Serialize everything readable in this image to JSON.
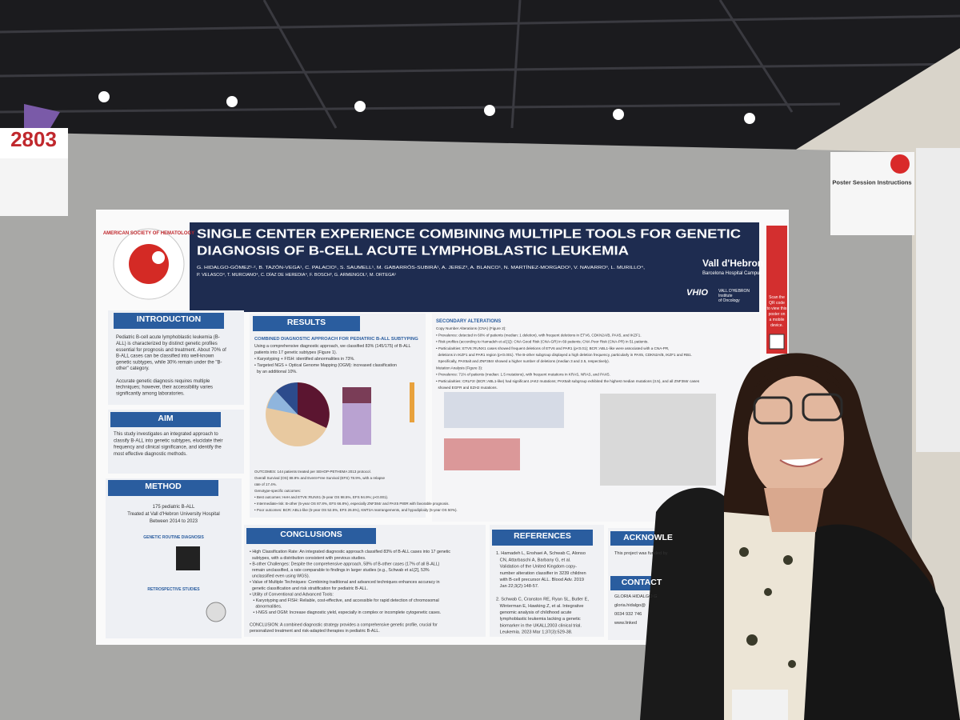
{
  "sign": {
    "number": "2803"
  },
  "poster": {
    "logo": "AMERICAN SOCIETY OF HEMATOLOGY",
    "title": [
      "SINGLE CENTER EXPERIENCE COMBINING MULTIPLE TOOLS FOR GENETIC",
      "DIAGNOSIS OF B-CELL ACUTE LYMPHOBLASTIC LEUKEMIA"
    ],
    "authors": [
      "G. HIDALGO-GÓMEZ¹·², B. TAZÓN-VEGA¹, C. PALACIO¹, S. SAUMELL¹, M. GABARRÓS-SUBIRÀ¹, A. JEREZ³, A. BLANCO¹, N. MARTÍNEZ-MORGADO¹, V. NAVARRO³, L. MURILLO⁴,",
      "P. VELASCO⁴, T. MURCIANO⁴, C. DÍAZ DE HEREDIA⁴, F. BOSCH³, G. ARMENGOL², M. ORTEGA¹"
    ],
    "institution": {
      "name": "Vall d'Hebron",
      "campus": "Barcelona Hospital Campus",
      "vhio": "VHIO",
      "vhio_name": [
        "VALL D'HEBRON",
        "Institute",
        "of Oncology"
      ]
    },
    "qr_note": [
      "Scan the",
      "QR code",
      "to view this",
      "poster on",
      "a mobile",
      "device."
    ],
    "introduction": {
      "heading": "INTRODUCTION",
      "lines": [
        "Pediatric B-cell acute lymphoblastic leukemia (B-",
        "ALL) is characterized by distinct genetic profiles",
        "essential for prognosis and treatment. About 70% of",
        "B-ALL cases can be classified into well-known",
        "genetic subtypes, while 30% remain under the \"B-",
        "other\" category.",
        "",
        "Accurate genetic diagnosis requires multiple",
        "techniques; however, their accessibility varies",
        "significantly among laboratories."
      ]
    },
    "aim": {
      "heading": "AIM",
      "lines": [
        "This study investigates an integrated approach to",
        "classify B-ALL into genetic subtypes, elucidate their",
        "frequency and clinical significance, and identify the",
        "most effective diagnostic methods."
      ]
    },
    "method": {
      "heading": "METHOD",
      "lines": [
        "175 pediatric B-ALL",
        "Treated at Vall d'Hebron University Hospital",
        "Between 2014 to 2023"
      ],
      "routine": "GENETIC ROUTINE DIAGNOSIS",
      "retro": "RETROSPECTIVE STUDIES"
    },
    "results": {
      "heading": "RESULTS",
      "subheading": "COMBINED DIAGNOSTIC APPROACH FOR PEDIATRIC B-ALL SUBTYPING",
      "lines": [
        "Using a comprehensive diagnostic approach, we classified 83% (145/175) of B-ALL",
        "patients into 17 genetic subtypes (Figure 1).",
        "• Karyotyping + FISH: identified abnormalities in 73%.",
        "• Targeted NGS + Optical Genome Mapping (OGM): increased classification",
        "  by an additional 10%."
      ],
      "outcomes": [
        "OUTCOMES: 144 patients treated per SEHOP-PETHEMA 2013 protocol.",
        "Overall Survival (OS) 88.9% and Event-Free Survival (EFS) 78.9%, with a relapse",
        "rate of 17.4%.",
        "Genotype-specific outcomes:",
        "• Best outcomes: HeH and ETV6::RUNX1 (5-year OS 98.5%, EFS 94.9%; p<0.001).",
        "• Intermediate-risk: B-other (5-year OS 87.8%, EFS 66.8%), especially ZNF384r and PAX5 P80R with favorable prognosis.",
        "• Poor outcomes: BCR::ABL1-like (5-year OS 52.5%, EFS 26.5%), KMT2A rearrangements, and hypodiploidy (5-year OS 50%)."
      ]
    },
    "secondary": {
      "heading": "SECONDARY ALTERATIONS",
      "lines": [
        "Copy Number Alterations (CNA) (Figure 2):",
        "• Prevalence: detected in 60% of patients (median: 1 deletion), with frequent deletions in ETV6, CDKN2A/B, PAX5, and IKZF1.",
        "• Risk profiles (according to Hamadeh et al.[1]): CNA Good Risk (CNA-GR) in 69 patients; CNA Poor Risk (CNA-PR) in 51 patients.",
        "• Particularities: ETV6::RUNX1 cases showed frequent deletions of ETV6 and PAR1 (p<0.01); BCR::ABL1-like were associated with a CNA-PR,",
        "  deletions in IKZF1 and PAR1 region (p<0.001). The B-other subgroup displayed a high deletion frequency, particularly in PAX5, CDKN2A/B, IKZF1 and RB1.",
        "  Specifically, PAX5alt and ZNF384r showed a higher number of deletions (median 3 and 2.5, respectively).",
        "Mutation Analysis (Figure 3):",
        "• Prevalence: 71% of patients (median: 1.5 mutations), with frequent mutations in KRAS, NRAS, and PAX5.",
        "• Particularities: CRLF2r (BCR::ABL1-like) had significant JAK2 mutations; PAX5alt subgroup exhibited the highest median mutations (3.5), and all ZNF384r cases",
        "  showed EGFR and EZH2 mutations."
      ]
    },
    "conclusions": {
      "heading": "CONCLUSIONS",
      "lines": [
        "• High Classification Rate: An integrated diagnostic approach classified 83% of B-ALL cases into 17 genetic",
        "  subtypes, with a distribution consistent with previous studies.",
        "• B-other Challenges: Despite the comprehensive approach, 58% of B-other cases (17% of all B-ALL)",
        "  remain unclassified, a rate comparable to findings in larger studies (e.g., Schwab et al.[2], 53%",
        "  unclassified even using WGS).",
        "• Value of Multiple Techniques: Combining traditional and advanced techniques enhances accuracy in",
        "  genetic classification and risk stratification for pediatric B-ALL.",
        "• Utility of Conventional and Advanced Tools:",
        "   • Karyotyping and FISH: Reliable, cost-effective, and accessible for rapid detection of chromosomal",
        "     abnormalities.",
        "   • t-NGS and OGM: Increase diagnostic yield, especially in complex or incomplete cytogenetic cases.",
        "",
        "CONCLUSION: A combined diagnostic strategy provides a comprehensive genetic profile, crucial for",
        "personalized treatment and risk-adapted therapies in pediatric B-ALL."
      ]
    },
    "references": {
      "heading": "REFERENCES",
      "lines": [
        "1. Hamadeh L, Enshaei A, Schwab C, Alonso",
        "   CN, Attarbaschi A, Barbany G, et al.",
        "   Validation of the United Kingdom copy-",
        "   number alteration classifier in 3239 children",
        "   with B-cell precursor ALL. Blood Adv. 2019",
        "   Jan 22;3(2):148-57.",
        "",
        "2. Schwab C, Cranston RE, Ryan SL, Butler E,",
        "   Winterman E, Hawking Z, et al. Integrative",
        "   genomic analysis of childhood acute",
        "   lymphoblastic leukemia lacking a genetic",
        "   biomarker in the UKALL2003 clinical trial.",
        "   Leukemia. 2023 Mar 1;37(3):529-38."
      ]
    },
    "acknowledgments": {
      "heading": "ACKNOWLE",
      "lines": [
        "This project was funded by"
      ]
    },
    "contact": {
      "heading": "CONTACT",
      "lines": [
        "GLORIA HIDALGO G",
        "gloria.hidalgo@",
        "0034 932 746",
        "www.linked"
      ]
    }
  },
  "instructions": {
    "title": "Poster Session Instructions"
  }
}
